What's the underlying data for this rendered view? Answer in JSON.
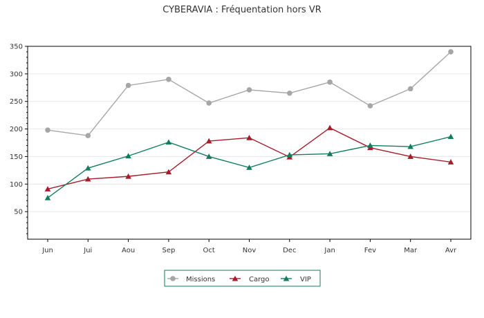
{
  "chart_data": {
    "type": "line",
    "title": "CYBERAVIA : Fréquentation hors VR",
    "xlabel": "",
    "ylabel": "",
    "categories": [
      "Jun",
      "Jui",
      "Aou",
      "Sep",
      "Oct",
      "Nov",
      "Dec",
      "Jan",
      "Fev",
      "Mar",
      "Avr"
    ],
    "ylim": [
      0,
      350
    ],
    "yticks": [
      50,
      100,
      150,
      200,
      250,
      300,
      350
    ],
    "grid": true,
    "legend_position": "bottom",
    "series": [
      {
        "name": "Missions",
        "color": "#a6a6a6",
        "marker": "circle",
        "values": [
          198,
          188,
          279,
          290,
          247,
          271,
          265,
          285,
          242,
          273,
          340
        ]
      },
      {
        "name": "Cargo",
        "color": "#a61c2b",
        "marker": "triangle",
        "values": [
          91,
          109,
          114,
          122,
          178,
          184,
          149,
          202,
          166,
          150,
          140
        ]
      },
      {
        "name": "VIP",
        "color": "#117d5e",
        "marker": "triangle",
        "values": [
          75,
          129,
          151,
          176,
          150,
          130,
          153,
          155,
          170,
          168,
          186
        ]
      }
    ]
  }
}
